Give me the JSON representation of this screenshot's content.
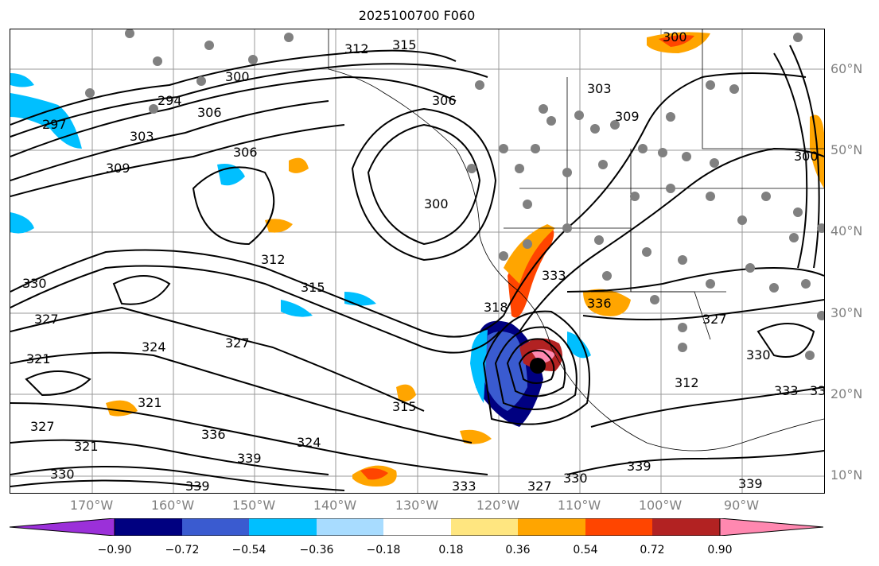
{
  "title": "2025100700 F060",
  "lat_labels": [
    "60°N",
    "50°N",
    "40°N",
    "30°N",
    "20°N",
    "10°N"
  ],
  "lon_labels": [
    "170°W",
    "160°W",
    "150°W",
    "140°W",
    "130°W",
    "120°W",
    "110°W",
    "100°W",
    "90°W"
  ],
  "contour_labels": [
    "297",
    "303",
    "306",
    "309",
    "312",
    "315",
    "300",
    "321",
    "324",
    "327",
    "330",
    "333",
    "336",
    "339",
    "294",
    "318"
  ],
  "colorbar": {
    "ticks": [
      "−0.90",
      "−0.72",
      "−0.54",
      "−0.36",
      "−0.18",
      "0.18",
      "0.36",
      "0.54",
      "0.72",
      "0.90"
    ],
    "colors": [
      "#9b30d9",
      "#000080",
      "#3a5bd0",
      "#00bfff",
      "#a8dcff",
      "#ffffff",
      "#ffe680",
      "#ffa500",
      "#ff4500",
      "#b22222",
      "#ff88b0"
    ]
  }
}
